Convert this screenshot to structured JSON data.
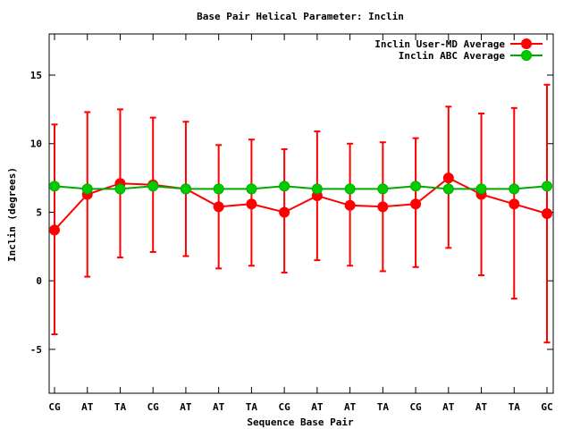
{
  "chart_data": {
    "type": "line",
    "title": "Base Pair Helical Parameter: Inclin",
    "xlabel": "Sequence Base Pair",
    "ylabel": "Inclin (degrees)",
    "categories": [
      "CG",
      "AT",
      "TA",
      "CG",
      "AT",
      "AT",
      "TA",
      "CG",
      "AT",
      "AT",
      "TA",
      "CG",
      "AT",
      "AT",
      "TA",
      "GC"
    ],
    "ylim": [
      -8.2,
      18
    ],
    "yticks": [
      15,
      10,
      5,
      0,
      -5
    ],
    "ytick_labels": [
      "15",
      "10",
      "5",
      "0",
      "-5"
    ],
    "legend_position": "top-right",
    "series": [
      {
        "name": "Inclin User-MD Average",
        "color": "#ff0000",
        "marker_fill": "#ff0000",
        "values": [
          3.7,
          6.3,
          7.1,
          7.0,
          6.7,
          5.4,
          5.6,
          5.0,
          6.2,
          5.5,
          5.4,
          5.6,
          7.5,
          6.3,
          5.6,
          4.9
        ],
        "err_low": [
          -3.9,
          0.3,
          1.7,
          2.1,
          1.8,
          0.9,
          1.1,
          0.6,
          1.5,
          1.1,
          0.7,
          1.0,
          2.4,
          0.4,
          -1.3,
          -4.5
        ],
        "err_high": [
          11.4,
          12.3,
          12.5,
          11.9,
          11.6,
          9.9,
          10.3,
          9.6,
          10.9,
          10.0,
          10.1,
          10.4,
          12.7,
          12.2,
          12.6,
          14.3
        ]
      },
      {
        "name": "Inclin ABC Average",
        "color": "#00aa00",
        "marker_fill": "#00cc00",
        "values": [
          6.9,
          6.7,
          6.7,
          6.9,
          6.7,
          6.7,
          6.7,
          6.9,
          6.7,
          6.7,
          6.7,
          6.9,
          6.7,
          6.7,
          6.7,
          6.9
        ]
      }
    ]
  }
}
